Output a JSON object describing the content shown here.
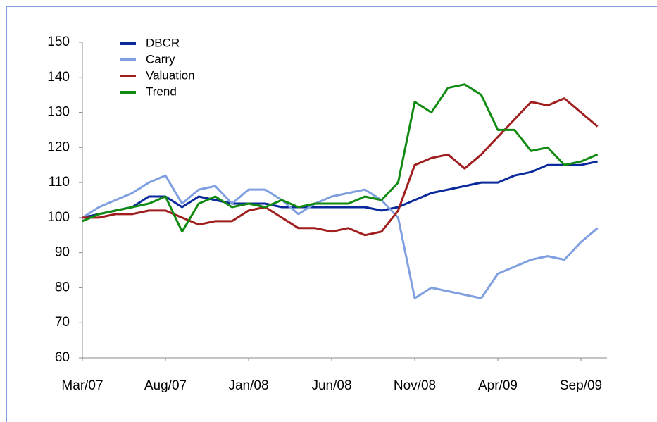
{
  "chart_data": {
    "type": "line",
    "categories": [
      "Mar/07",
      null,
      null,
      null,
      null,
      "Aug/07",
      null,
      null,
      null,
      null,
      "Jan/08",
      null,
      null,
      null,
      null,
      "Jun/08",
      null,
      null,
      null,
      null,
      "Nov/08",
      null,
      null,
      null,
      null,
      "Apr/09",
      null,
      null,
      null,
      null,
      "Sep/09",
      null
    ],
    "series": [
      {
        "name": "DBCR",
        "color": "#0a2a9c",
        "values": [
          100,
          101,
          102,
          103,
          106,
          106,
          103,
          106,
          105,
          104,
          104,
          104,
          103,
          103,
          103,
          103,
          103,
          103,
          102,
          103,
          105,
          107,
          108,
          109,
          110,
          110,
          112,
          113,
          115,
          115,
          115,
          116
        ]
      },
      {
        "name": "Carry",
        "color": "#7f9fe0",
        "values": [
          100,
          103,
          105,
          107,
          110,
          112,
          104,
          108,
          109,
          104,
          108,
          108,
          105,
          101,
          104,
          106,
          107,
          108,
          105,
          100,
          77,
          80,
          79,
          78,
          77,
          84,
          86,
          88,
          89,
          88,
          93,
          97
        ]
      },
      {
        "name": "Valuation",
        "color": "#a01e1e",
        "values": [
          100,
          100,
          101,
          101,
          102,
          102,
          100,
          98,
          99,
          99,
          102,
          103,
          100,
          97,
          97,
          96,
          97,
          95,
          96,
          102,
          115,
          117,
          118,
          114,
          118,
          123,
          128,
          133,
          132,
          134,
          130,
          126
        ]
      },
      {
        "name": "Trend",
        "color": "#108a10",
        "values": [
          99,
          101,
          102,
          103,
          104,
          106,
          96,
          104,
          106,
          103,
          104,
          103,
          105,
          103,
          104,
          104,
          104,
          106,
          105,
          110,
          133,
          130,
          137,
          138,
          135,
          125,
          125,
          119,
          120,
          115,
          116,
          118
        ]
      }
    ],
    "ylim": [
      60,
      150
    ],
    "yticks": [
      60,
      70,
      80,
      90,
      100,
      110,
      120,
      130,
      140,
      150
    ],
    "legend": "upper left"
  }
}
